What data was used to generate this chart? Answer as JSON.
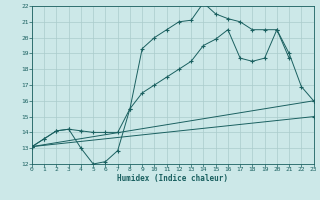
{
  "xlabel": "Humidex (Indice chaleur)",
  "xlim": [
    0,
    23
  ],
  "ylim": [
    12,
    22
  ],
  "xticks": [
    0,
    1,
    2,
    3,
    4,
    5,
    6,
    7,
    8,
    9,
    10,
    11,
    12,
    13,
    14,
    15,
    16,
    17,
    18,
    19,
    20,
    21,
    22,
    23
  ],
  "yticks": [
    12,
    13,
    14,
    15,
    16,
    17,
    18,
    19,
    20,
    21,
    22
  ],
  "bg_color": "#cce8e8",
  "grid_color": "#aacccc",
  "line_color": "#1a6060",
  "series": [
    {
      "x": [
        0,
        1,
        2,
        3,
        4,
        5,
        6,
        7,
        8,
        9,
        10,
        11,
        12,
        13,
        14,
        15,
        16,
        17,
        18,
        19,
        20,
        21
      ],
      "y": [
        13.1,
        13.6,
        14.1,
        14.2,
        13.0,
        12.0,
        12.15,
        12.85,
        15.5,
        19.3,
        20.0,
        20.5,
        21.0,
        21.1,
        22.2,
        21.5,
        21.2,
        21.0,
        20.5,
        20.5,
        20.5,
        18.7
      ]
    },
    {
      "x": [
        0,
        1,
        2,
        3,
        4,
        5,
        6,
        7,
        8,
        9,
        10,
        11,
        12,
        13,
        14,
        15,
        16,
        17,
        18,
        19,
        20,
        21,
        22,
        23
      ],
      "y": [
        13.1,
        13.6,
        14.1,
        14.2,
        14.1,
        14.0,
        14.0,
        14.0,
        15.5,
        16.5,
        17.0,
        17.5,
        18.0,
        18.5,
        19.5,
        19.9,
        20.5,
        18.7,
        18.5,
        18.7,
        20.5,
        19.0,
        16.9,
        16.0
      ]
    },
    {
      "x": [
        0,
        23
      ],
      "y": [
        13.1,
        16.0
      ]
    },
    {
      "x": [
        0,
        23
      ],
      "y": [
        13.1,
        15.0
      ]
    }
  ]
}
